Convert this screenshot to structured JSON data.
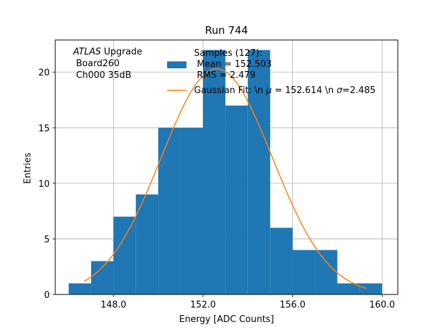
{
  "chart_data": {
    "type": "bar",
    "title": "Run 744",
    "xlabel": "Energy [ADC Counts]",
    "ylabel": "Entries",
    "xlim": [
      145.4,
      160.7
    ],
    "ylim": [
      0,
      22.9
    ],
    "xticks": [
      148.0,
      152.0,
      156.0,
      160.0
    ],
    "xtick_labels": [
      "148.0",
      "152.0",
      "156.0",
      "160.0"
    ],
    "yticks": [
      0,
      5,
      10,
      15,
      20
    ],
    "ytick_labels": [
      "0",
      "5",
      "10",
      "15",
      "20"
    ],
    "grid": true,
    "bin_edges": [
      146,
      147,
      148,
      149,
      150,
      151,
      152,
      153,
      154,
      155,
      156,
      157,
      158,
      159,
      160
    ],
    "values": [
      1,
      3,
      7,
      9,
      15,
      15,
      22,
      17,
      22,
      6,
      4,
      4,
      1,
      1
    ],
    "histogram_color": "#1f77b4",
    "fit": {
      "type": "gaussian",
      "amplitude": 20.3,
      "mu": 152.614,
      "sigma": 2.485,
      "x_range": [
        146.7,
        159.3
      ],
      "color": "#ff7f0e"
    },
    "legend": {
      "location": "top-right",
      "entries": [
        {
          "kind": "patch",
          "lines": [
            "Samples (127):",
            " Mean = 152.503",
            " RMS = 2.479"
          ]
        },
        {
          "kind": "line",
          "lines": [
            "Gaussian Fit: \\n $\\mu$ = 152.614 \\n $\\sigma$=2.485"
          ],
          "label_prefix": "Gaussian Fit: \\n ",
          "mu_symbol": "μ",
          "mu_text": " = 152.614 \\n ",
          "sigma_symbol": "σ",
          "sigma_text": "=2.485"
        }
      ]
    },
    "annotation": {
      "italic": "ATLAS",
      "rest": " Upgrade",
      "line2": " Board260",
      "line3": " Ch000 35dB"
    }
  }
}
